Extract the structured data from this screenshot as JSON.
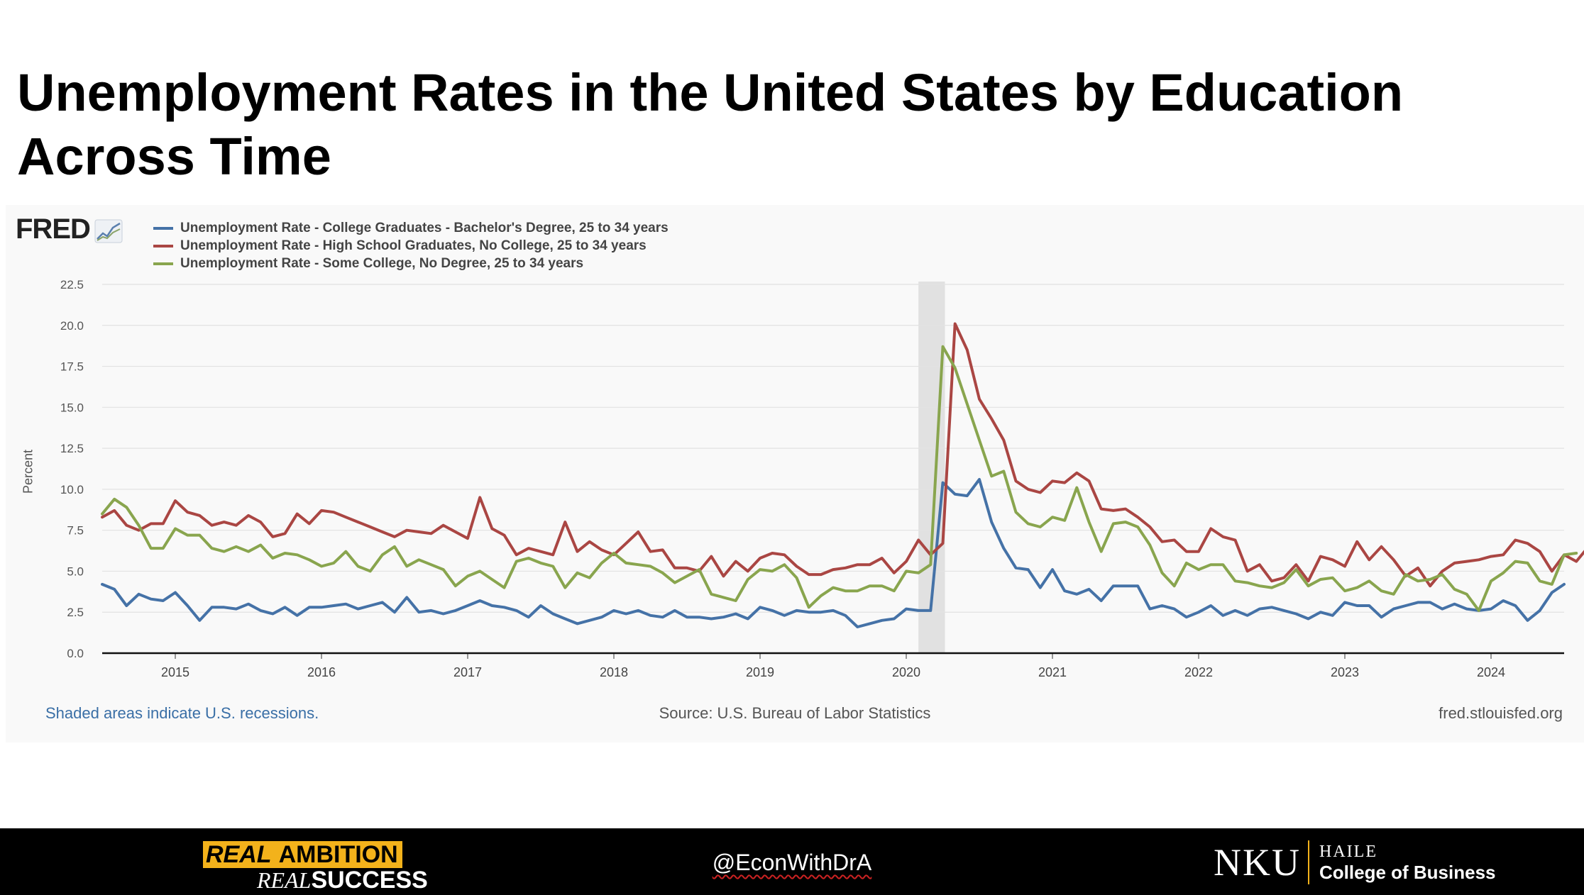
{
  "slide": {
    "title": "Unemployment Rates in the United States by Education Across Time"
  },
  "chart": {
    "logo_text": "FRED",
    "y_axis_label": "Percent",
    "footer_left": "Shaded areas indicate U.S. recessions.",
    "footer_center": "Source: U.S. Bureau of Labor Statistics",
    "footer_right": "fred.stlouisfed.org"
  },
  "chart_data": {
    "type": "line",
    "ylabel": "Percent",
    "ylim": [
      0,
      22.5
    ],
    "yticks": [
      "0.0",
      "2.5",
      "5.0",
      "7.5",
      "10.0",
      "12.5",
      "15.0",
      "17.5",
      "20.0",
      "22.5"
    ],
    "xlim": [
      "2014-07",
      "2024-07"
    ],
    "xticks": [
      "2015",
      "2016",
      "2017",
      "2018",
      "2019",
      "2020",
      "2021",
      "2022",
      "2023",
      "2024"
    ],
    "grid": true,
    "legend_position": "top-left",
    "recession_shading": [
      {
        "start": "2020-02",
        "end": "2020-04"
      }
    ],
    "series": [
      {
        "name": "Unemployment Rate - College Graduates - Bachelor's Degree, 25 to 34 years",
        "color": "#4572a7",
        "start": "2014-07",
        "values": [
          4.2,
          3.9,
          2.9,
          3.6,
          3.3,
          3.2,
          3.7,
          2.9,
          2.0,
          2.8,
          2.8,
          2.7,
          3.0,
          2.6,
          2.4,
          2.8,
          2.3,
          2.8,
          2.8,
          2.9,
          3.0,
          2.7,
          2.9,
          3.1,
          2.5,
          3.4,
          2.5,
          2.6,
          2.4,
          2.6,
          2.9,
          3.2,
          2.9,
          2.8,
          2.6,
          2.2,
          2.9,
          2.4,
          2.1,
          1.8,
          2.0,
          2.2,
          2.6,
          2.4,
          2.6,
          2.3,
          2.2,
          2.6,
          2.2,
          2.2,
          2.1,
          2.2,
          2.4,
          2.1,
          2.8,
          2.6,
          2.3,
          2.6,
          2.5,
          2.5,
          2.6,
          2.3,
          1.6,
          1.8,
          2.0,
          2.1,
          2.7,
          2.6,
          2.6,
          10.4,
          9.7,
          9.6,
          10.6,
          8.0,
          6.4,
          5.2,
          5.1,
          4.0,
          5.1,
          3.8,
          3.6,
          3.9,
          3.2,
          4.1,
          4.1,
          4.1,
          2.7,
          2.9,
          2.7,
          2.2,
          2.5,
          2.9,
          2.3,
          2.6,
          2.3,
          2.7,
          2.8,
          2.6,
          2.4,
          2.1,
          2.5,
          2.3,
          3.1,
          2.9,
          2.9,
          2.2,
          2.7,
          2.9,
          3.1,
          3.1,
          2.7,
          3.0,
          2.7,
          2.6,
          2.7,
          3.2,
          2.9,
          2.0,
          2.6,
          3.7,
          4.2
        ]
      },
      {
        "name": "Unemployment Rate - High School Graduates, No College, 25 to 34 years",
        "color": "#aa4643",
        "start": "2014-07",
        "values": [
          8.3,
          8.7,
          7.8,
          7.5,
          7.9,
          7.9,
          9.3,
          8.6,
          8.4,
          7.8,
          8.0,
          7.8,
          8.4,
          8.0,
          7.1,
          7.3,
          8.5,
          7.9,
          8.7,
          8.6,
          8.3,
          8.0,
          7.7,
          7.4,
          7.1,
          7.5,
          7.4,
          7.3,
          7.8,
          7.4,
          7.0,
          9.5,
          7.6,
          7.2,
          6.0,
          6.4,
          6.2,
          6.0,
          8.0,
          6.2,
          6.8,
          6.3,
          6.0,
          6.7,
          7.4,
          6.2,
          6.3,
          5.2,
          5.2,
          5.0,
          5.9,
          4.7,
          5.6,
          5.0,
          5.8,
          6.1,
          6.0,
          5.3,
          4.8,
          4.8,
          5.1,
          5.2,
          5.4,
          5.4,
          5.8,
          4.9,
          5.6,
          6.9,
          6.0,
          6.7,
          20.1,
          18.5,
          15.5,
          14.3,
          13.0,
          10.5,
          10.0,
          9.8,
          10.5,
          10.4,
          11.0,
          10.5,
          8.8,
          8.7,
          8.8,
          8.3,
          7.7,
          6.8,
          6.9,
          6.2,
          6.2,
          7.6,
          7.1,
          6.9,
          5.0,
          5.4,
          4.4,
          4.6,
          5.4,
          4.4,
          5.9,
          5.7,
          5.3,
          6.8,
          5.7,
          6.5,
          5.7,
          4.7,
          5.2,
          4.1,
          5.0,
          5.5,
          5.6,
          5.7,
          5.9,
          6.0,
          6.9,
          6.7,
          6.2,
          5.0,
          6.0,
          5.6,
          6.5
        ]
      },
      {
        "name": "Unemployment Rate - Some College, No Degree, 25 to 34 years",
        "color": "#89a54e",
        "start": "2014-07",
        "values": [
          8.5,
          9.4,
          8.9,
          7.8,
          6.4,
          6.4,
          7.6,
          7.2,
          7.2,
          6.4,
          6.2,
          6.5,
          6.2,
          6.6,
          5.8,
          6.1,
          6.0,
          5.7,
          5.3,
          5.5,
          6.2,
          5.3,
          5.0,
          6.0,
          6.5,
          5.3,
          5.7,
          5.4,
          5.1,
          4.1,
          4.7,
          5.0,
          4.5,
          4.0,
          5.6,
          5.8,
          5.5,
          5.3,
          4.0,
          4.9,
          4.6,
          5.5,
          6.1,
          5.5,
          5.4,
          5.3,
          4.9,
          4.3,
          4.7,
          5.1,
          3.6,
          3.4,
          3.2,
          4.5,
          5.1,
          5.0,
          5.4,
          4.6,
          2.8,
          3.5,
          4.0,
          3.8,
          3.8,
          4.1,
          4.1,
          3.8,
          5.0,
          4.9,
          5.4,
          18.7,
          17.4,
          15.2,
          13.0,
          10.8,
          11.1,
          8.6,
          7.9,
          7.7,
          8.3,
          8.1,
          10.1,
          8.0,
          6.2,
          7.9,
          8.0,
          7.7,
          6.6,
          4.9,
          4.1,
          5.5,
          5.1,
          5.4,
          5.4,
          4.4,
          4.3,
          4.1,
          4.0,
          4.3,
          5.1,
          4.1,
          4.5,
          4.6,
          3.8,
          4.0,
          4.4,
          3.8,
          3.6,
          4.8,
          4.4,
          4.5,
          4.8,
          3.9,
          3.6,
          2.6,
          4.4,
          4.9,
          5.6,
          5.5,
          4.4,
          4.2,
          6.0,
          6.1
        ]
      }
    ]
  },
  "footer": {
    "tagline_real_1": "REAL",
    "tagline_ambition": "AMBITION",
    "tagline_real_2": "REAL",
    "tagline_success": "SUCCESS",
    "handle": "@EconWithDrA",
    "nku_mark": "NKU",
    "college_line_1": "HAILE",
    "college_line_2": "College of Business"
  }
}
